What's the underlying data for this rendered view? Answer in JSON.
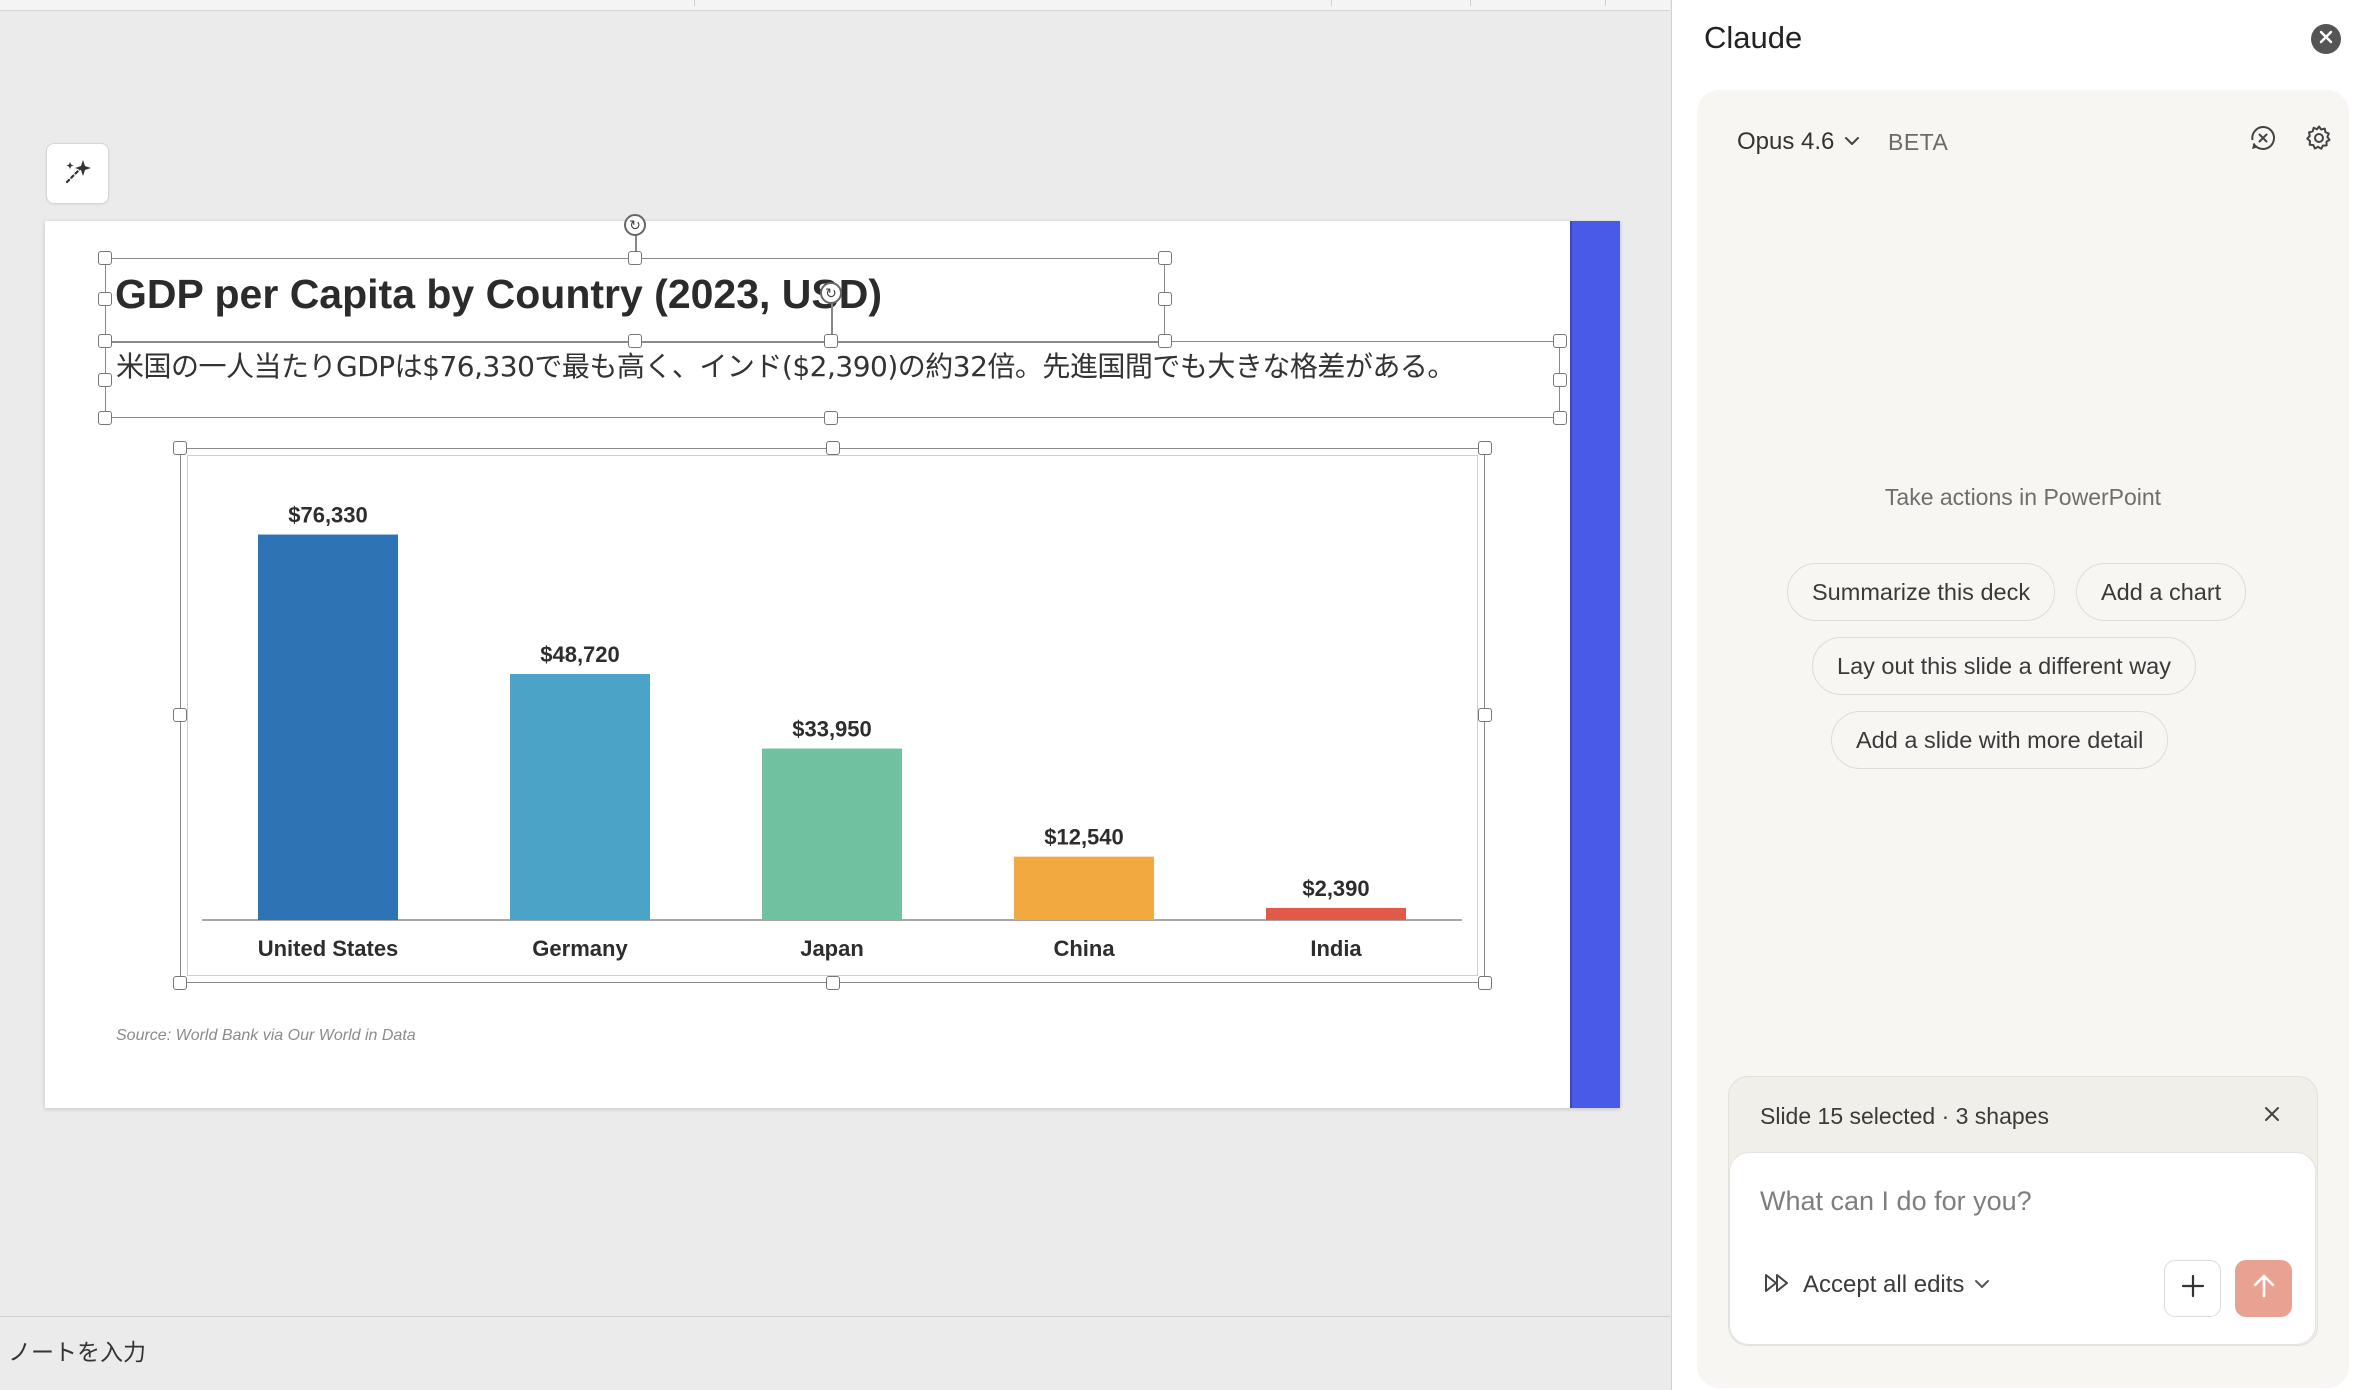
{
  "slide": {
    "title": "GDP per Capita by Country (2023, USD)",
    "subtitle": "米国の一人当たりGDPは$76,330で最も高く、インド($2,390)の約32倍。先進国間でも大きな格差がある。",
    "source_note": "Source: World Bank via Our World in Data",
    "accent_color": "#4a5ae8"
  },
  "chart_data": {
    "type": "bar",
    "categories": [
      "United States",
      "Germany",
      "Japan",
      "China",
      "India"
    ],
    "values": [
      76330,
      48720,
      33950,
      12540,
      2390
    ],
    "value_labels": [
      "$76,330",
      "$48,720",
      "$33,950",
      "$12,540",
      "$2,390"
    ],
    "colors": [
      "#2e74b5",
      "#4ba3c7",
      "#6fc1a0",
      "#f2a93f",
      "#e05a47"
    ],
    "ylim": [
      0,
      80000
    ],
    "grid": false,
    "legend": "none"
  },
  "notes": {
    "placeholder": "ノートを入力"
  },
  "panel": {
    "title": "Claude",
    "model": "Opus 4.6",
    "beta": "BETA",
    "empty_heading": "Take actions in PowerPoint",
    "suggestions": [
      "Summarize this deck",
      "Add a chart",
      "Lay out this slide a different way",
      "Add a slide with more detail"
    ],
    "selection_label": "Slide 15 selected · 3 shapes",
    "input_placeholder": "What can I do for you?",
    "accept_label": "Accept all edits",
    "send_color": "#e9a291"
  },
  "icons": {
    "designer": "magic-wand-icon",
    "close": "close-circle-icon",
    "history": "history-icon",
    "settings": "gear-icon",
    "accept": "fast-forward-icon",
    "attach": "plus-icon",
    "send": "arrow-up-icon"
  }
}
